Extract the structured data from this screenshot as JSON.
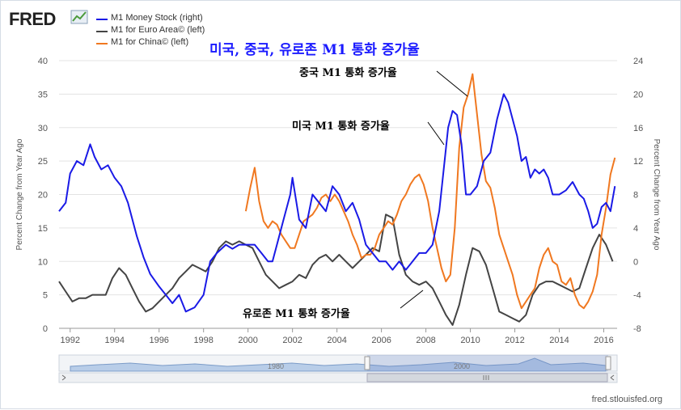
{
  "branding": {
    "logo_text": "FRED",
    "logo_icon": "chart-line-icon",
    "credit": "fred.stlouisfed.org"
  },
  "title": "미국, 중국, 유로존 M1 통화 증가율",
  "legend": [
    {
      "label": "M1 Money Stock (right)",
      "color": "#1a1ae6"
    },
    {
      "label": "M1 for Euro Area© (left)",
      "color": "#444444"
    },
    {
      "label": "M1 for China© (left)",
      "color": "#f07820"
    }
  ],
  "annotations": {
    "china": "중국 M1 통화 증가율",
    "us": "미국 M1 통화 증가율",
    "euro": "유로존 M1 통화 증가율"
  },
  "chart_data": {
    "type": "line",
    "xlabel": "",
    "ylabel": "Percent Change from Year Ago",
    "ylabel_right": "Percent Change from Year Ago",
    "xlim": [
      1991.5,
      2016.6
    ],
    "ylim": [
      0,
      40
    ],
    "ylim_right": [
      -8,
      24
    ],
    "x_ticks": [
      "1992",
      "1994",
      "1996",
      "1998",
      "2000",
      "2002",
      "2004",
      "2006",
      "2008",
      "2010",
      "2012",
      "2014",
      "2016"
    ],
    "y_ticks": [
      "0",
      "5",
      "10",
      "15",
      "20",
      "25",
      "30",
      "35",
      "40"
    ],
    "y_ticks_right": [
      "-8",
      "-4",
      "0",
      "4",
      "8",
      "12",
      "16",
      "20",
      "24"
    ],
    "grid": true,
    "legend_position": "top-left",
    "navigator": {
      "labels": [
        "1980",
        "2000"
      ]
    },
    "series": [
      {
        "name": "M1 Money Stock (right)",
        "axis": "right",
        "color": "#1a1ae6",
        "x": [
          1991.5,
          1991.8,
          1992.0,
          1992.3,
          1992.6,
          1992.9,
          1993.1,
          1993.4,
          1993.7,
          1994.0,
          1994.3,
          1994.6,
          1995.0,
          1995.3,
          1995.6,
          1996.0,
          1996.3,
          1996.6,
          1996.9,
          1997.2,
          1997.6,
          1998.0,
          1998.3,
          1998.6,
          1999.0,
          1999.3,
          1999.6,
          2000.0,
          2000.3,
          2000.6,
          2000.9,
          2001.1,
          2001.3,
          2001.6,
          2001.9,
          2002.0,
          2002.3,
          2002.6,
          2002.9,
          2003.2,
          2003.5,
          2003.8,
          2004.1,
          2004.4,
          2004.7,
          2005.0,
          2005.3,
          2005.6,
          2005.9,
          2006.2,
          2006.5,
          2006.8,
          2007.1,
          2007.4,
          2007.7,
          2008.0,
          2008.3,
          2008.6,
          2008.8,
          2009.0,
          2009.2,
          2009.4,
          2009.6,
          2009.8,
          2010.0,
          2010.3,
          2010.6,
          2010.9,
          2011.2,
          2011.5,
          2011.7,
          2011.9,
          2012.1,
          2012.3,
          2012.5,
          2012.7,
          2012.9,
          2013.1,
          2013.3,
          2013.5,
          2013.7,
          2014.0,
          2014.3,
          2014.6,
          2014.9,
          2015.1,
          2015.3,
          2015.5,
          2015.7,
          2015.9,
          2016.1,
          2016.3,
          2016.5
        ],
        "values": [
          6.0,
          7.0,
          10.5,
          12.0,
          11.5,
          14.0,
          12.5,
          11.0,
          11.5,
          10.0,
          9.0,
          7.0,
          3.0,
          0.5,
          -1.5,
          -3.0,
          -4.0,
          -5.0,
          -4.0,
          -6.0,
          -5.5,
          -4.0,
          0.0,
          1.0,
          2.0,
          1.5,
          2.0,
          2.0,
          2.0,
          1.0,
          0.0,
          0.0,
          2.0,
          5.0,
          8.0,
          10.0,
          5.0,
          4.0,
          8.0,
          7.0,
          6.0,
          9.0,
          8.0,
          6.0,
          7.0,
          5.0,
          2.0,
          1.0,
          0.0,
          0.0,
          -1.0,
          0.0,
          -1.0,
          0.0,
          1.0,
          1.0,
          2.0,
          6.0,
          11.0,
          16.0,
          18.0,
          17.5,
          14.0,
          8.0,
          8.0,
          9.0,
          12.0,
          13.0,
          17.0,
          20.0,
          19.0,
          17.0,
          15.0,
          12.0,
          12.5,
          10.0,
          11.0,
          10.5,
          11.0,
          10.0,
          8.0,
          8.0,
          8.5,
          9.5,
          8.0,
          7.5,
          6.0,
          4.0,
          4.5,
          6.5,
          7.0,
          6.0,
          9.0
        ]
      },
      {
        "name": "M1 for Euro Area© (left)",
        "axis": "left",
        "color": "#444444",
        "x": [
          1991.5,
          1991.8,
          1992.1,
          1992.4,
          1992.7,
          1993.0,
          1993.3,
          1993.6,
          1993.9,
          1994.2,
          1994.5,
          1994.8,
          1995.1,
          1995.4,
          1995.7,
          1996.0,
          1996.3,
          1996.6,
          1996.9,
          1997.2,
          1997.5,
          1997.8,
          1998.1,
          1998.4,
          1998.7,
          1999.0,
          1999.3,
          1999.6,
          1999.9,
          2000.2,
          2000.5,
          2000.8,
          2001.1,
          2001.4,
          2001.7,
          2002.0,
          2002.3,
          2002.6,
          2002.9,
          2003.2,
          2003.5,
          2003.8,
          2004.1,
          2004.4,
          2004.7,
          2005.0,
          2005.3,
          2005.6,
          2005.9,
          2006.2,
          2006.5,
          2006.8,
          2007.1,
          2007.4,
          2007.7,
          2008.0,
          2008.3,
          2008.6,
          2008.9,
          2009.2,
          2009.5,
          2009.8,
          2010.1,
          2010.4,
          2010.7,
          2011.0,
          2011.3,
          2011.6,
          2011.9,
          2012.2,
          2012.5,
          2012.8,
          2013.1,
          2013.4,
          2013.7,
          2014.0,
          2014.3,
          2014.6,
          2014.9,
          2015.2,
          2015.5,
          2015.8,
          2016.1,
          2016.4
        ],
        "values": [
          7.0,
          5.5,
          4.0,
          4.5,
          4.5,
          5.0,
          5.0,
          5.0,
          7.5,
          9.0,
          8.0,
          6.0,
          4.0,
          2.5,
          3.0,
          4.0,
          5.0,
          6.0,
          7.5,
          8.5,
          9.5,
          9.0,
          8.5,
          10.0,
          12.0,
          13.0,
          12.5,
          13.0,
          12.5,
          12.0,
          10.0,
          8.0,
          7.0,
          6.0,
          6.5,
          7.0,
          8.0,
          7.5,
          9.5,
          10.5,
          11.0,
          10.0,
          11.0,
          10.0,
          9.0,
          10.0,
          11.0,
          12.0,
          11.5,
          17.0,
          16.5,
          11.0,
          8.0,
          7.0,
          6.5,
          7.0,
          6.0,
          4.0,
          2.0,
          0.5,
          3.5,
          8.0,
          12.0,
          11.5,
          9.5,
          6.0,
          2.5,
          2.0,
          1.5,
          1.0,
          2.0,
          5.0,
          6.5,
          7.0,
          7.0,
          6.5,
          6.0,
          5.5,
          6.0,
          9.0,
          12.0,
          14.0,
          12.5,
          10.0
        ]
      },
      {
        "name": "M1 for China© (left)",
        "axis": "left",
        "color": "#f07820",
        "x": [
          1999.9,
          2000.1,
          2000.3,
          2000.5,
          2000.7,
          2000.9,
          2001.1,
          2001.3,
          2001.5,
          2001.7,
          2001.9,
          2002.1,
          2002.3,
          2002.5,
          2002.7,
          2002.9,
          2003.1,
          2003.3,
          2003.5,
          2003.7,
          2003.9,
          2004.1,
          2004.3,
          2004.5,
          2004.7,
          2004.9,
          2005.1,
          2005.3,
          2005.5,
          2005.7,
          2005.9,
          2006.1,
          2006.3,
          2006.5,
          2006.7,
          2006.9,
          2007.1,
          2007.3,
          2007.5,
          2007.7,
          2007.9,
          2008.1,
          2008.3,
          2008.5,
          2008.7,
          2008.9,
          2009.1,
          2009.3,
          2009.5,
          2009.7,
          2009.9,
          2010.1,
          2010.3,
          2010.5,
          2010.7,
          2010.9,
          2011.1,
          2011.3,
          2011.5,
          2011.7,
          2011.9,
          2012.1,
          2012.3,
          2012.5,
          2012.7,
          2012.9,
          2013.1,
          2013.3,
          2013.5,
          2013.7,
          2013.9,
          2014.1,
          2014.3,
          2014.5,
          2014.7,
          2014.9,
          2015.1,
          2015.3,
          2015.5,
          2015.7,
          2015.9,
          2016.1,
          2016.3,
          2016.5
        ],
        "values": [
          17.5,
          21.0,
          24.0,
          19.0,
          16.0,
          15.0,
          16.0,
          15.5,
          14.0,
          13.0,
          12.0,
          12.0,
          14.0,
          16.0,
          16.5,
          17.0,
          18.0,
          19.5,
          20.0,
          19.0,
          20.0,
          19.0,
          17.5,
          16.0,
          14.0,
          12.5,
          10.5,
          11.0,
          11.0,
          12.0,
          14.0,
          15.0,
          16.0,
          15.5,
          17.0,
          19.0,
          20.0,
          21.5,
          22.5,
          23.0,
          21.5,
          19.0,
          15.0,
          12.0,
          9.0,
          7.0,
          8.0,
          15.0,
          27.0,
          33.0,
          35.0,
          38.0,
          32.0,
          26.0,
          22.0,
          21.0,
          18.0,
          14.0,
          12.0,
          10.0,
          8.0,
          5.0,
          3.0,
          4.0,
          5.0,
          6.0,
          9.0,
          11.0,
          12.0,
          10.0,
          9.5,
          7.0,
          6.5,
          7.5,
          5.0,
          3.5,
          3.0,
          4.0,
          5.5,
          8.0,
          14.0,
          18.0,
          23.0,
          25.5
        ]
      }
    ]
  }
}
